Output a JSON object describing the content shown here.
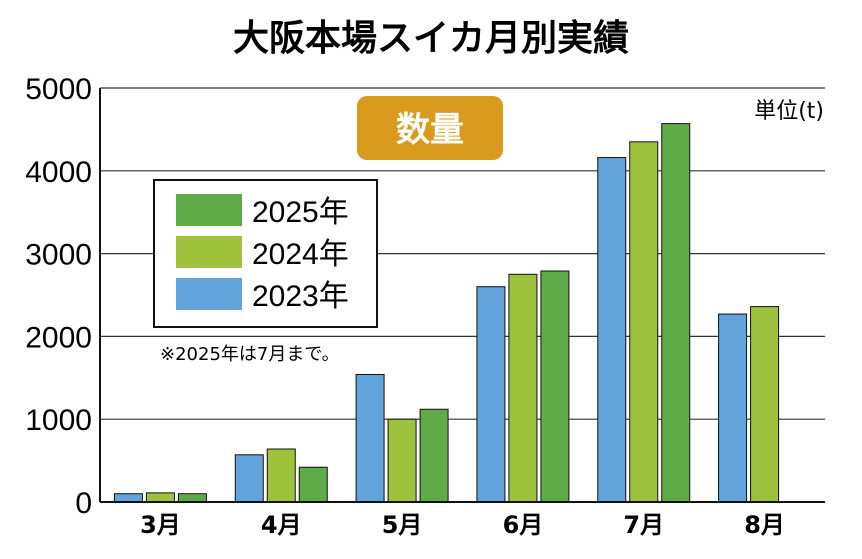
{
  "chart_data": {
    "type": "bar",
    "title": "大阪本場スイカ月別実績",
    "badge": "数量",
    "unit_label": "単位(t)",
    "note": "※2025年は7月まで。",
    "categories": [
      "3月",
      "4月",
      "5月",
      "6月",
      "7月",
      "8月"
    ],
    "y_ticks": [
      "0",
      "1000",
      "2000",
      "3000",
      "4000",
      "5000"
    ],
    "ylim": [
      0,
      5000
    ],
    "grid": true,
    "legend_position": "upper-left",
    "series": [
      {
        "name": "2023年",
        "color": "#62a3dc",
        "values": [
          100,
          570,
          1540,
          2600,
          4160,
          2270
        ]
      },
      {
        "name": "2024年",
        "color": "#9ec23c",
        "values": [
          110,
          640,
          1000,
          2750,
          4350,
          2360
        ]
      },
      {
        "name": "2025年",
        "color": "#5fab48",
        "values": [
          100,
          420,
          1120,
          2790,
          4570,
          null
        ]
      }
    ],
    "legend_order": [
      "2025年",
      "2024年",
      "2023年"
    ],
    "badge_color": "#d99a1e"
  }
}
